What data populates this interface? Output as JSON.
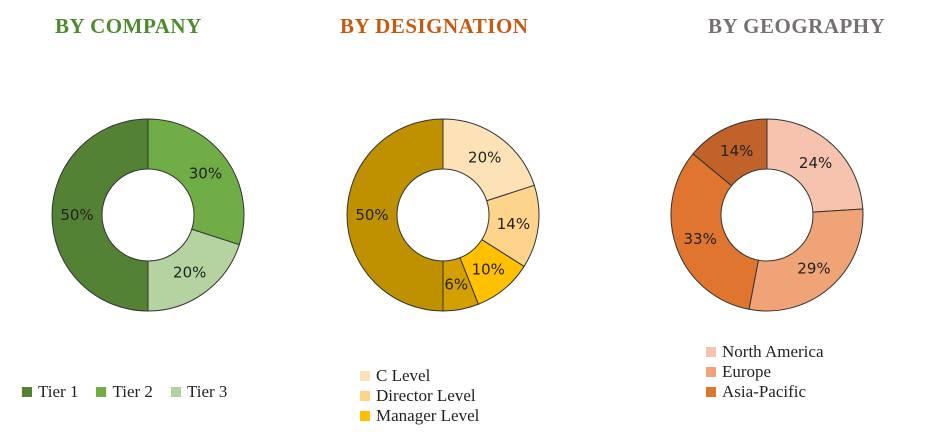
{
  "chart_data": [
    {
      "type": "pie",
      "title": "BY COMPANY",
      "title_color": "#4f8a2f",
      "series": [
        {
          "name": "Tier 1",
          "value": 50,
          "label": "50%",
          "color": "#548235"
        },
        {
          "name": "Tier 2",
          "value": 30,
          "label": "30%",
          "color": "#70ad47"
        },
        {
          "name": "Tier 3",
          "value": 20,
          "label": "20%",
          "color": "#b4d3a0"
        }
      ],
      "start_offset": 50,
      "legend": "bottom"
    },
    {
      "type": "pie",
      "title": "BY DESIGNATION",
      "title_color": "#c55a11",
      "series": [
        {
          "name": "C Level",
          "value": 20,
          "label": "20%",
          "color": "#fde2b8"
        },
        {
          "name": "Director Level",
          "value": 14,
          "label": "14%",
          "color": "#fed48c"
        },
        {
          "name": "Manager Level",
          "value": 10,
          "label": "10%",
          "color": "#ffc000"
        },
        {
          "name": "",
          "value": 6,
          "label": "6%",
          "color": "#d4a000"
        },
        {
          "name": "",
          "value": 50,
          "label": "50%",
          "color": "#bf9000"
        }
      ],
      "start_offset": 0,
      "legend": "bottom-left"
    },
    {
      "type": "pie",
      "title": "BY GEOGRAPHY",
      "title_color": "#767171",
      "series": [
        {
          "name": "North America",
          "value": 24,
          "label": "24%",
          "color": "#f5c3ae"
        },
        {
          "name": "Europe",
          "value": 29,
          "label": "29%",
          "color": "#f1a378"
        },
        {
          "name": "Asia-Pacific",
          "value": 33,
          "label": "33%",
          "color": "#e07530"
        },
        {
          "name": "",
          "value": 14,
          "label": "14%",
          "color": "#c0622a"
        }
      ],
      "start_offset": 0,
      "legend": "bottom-left"
    }
  ]
}
